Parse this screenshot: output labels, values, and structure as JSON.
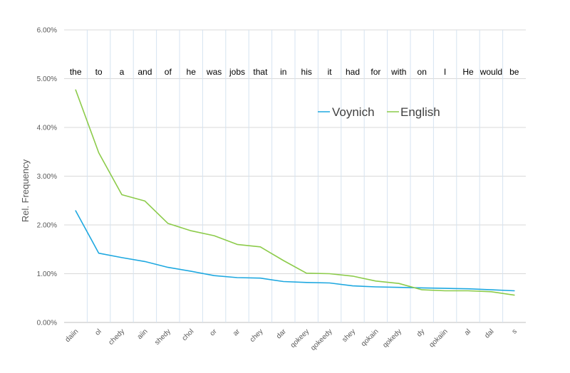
{
  "chart_data": {
    "type": "line",
    "title": "",
    "xlabel": "",
    "ylabel": "Rel. Frequency",
    "ylim": [
      0,
      0.06
    ],
    "yticks": [
      "0.00%",
      "1.00%",
      "2.00%",
      "3.00%",
      "4.00%",
      "5.00%",
      "6.00%"
    ],
    "grid": true,
    "legend_position": "top-right",
    "categories": [
      "daiin",
      "ol",
      "chedy",
      "aiin",
      "shedy",
      "chol",
      "or",
      "ar",
      "chey",
      "dar",
      "qokeey",
      "qokeedy",
      "shey",
      "qokain",
      "qokedy",
      "dy",
      "qokaiin",
      "al",
      "dal",
      "s"
    ],
    "top_labels": [
      "the",
      "to",
      "a",
      "and",
      "of",
      "he",
      "was",
      "jobs",
      "that",
      "in",
      "his",
      "it",
      "had",
      "for",
      "with",
      "on",
      "I",
      "He",
      "would",
      "be"
    ],
    "series": [
      {
        "name": "Voynich",
        "color": "#1EA8E0",
        "values": [
          0.0229,
          0.0142,
          0.0133,
          0.0125,
          0.0113,
          0.0105,
          0.0096,
          0.0092,
          0.0091,
          0.0084,
          0.0082,
          0.0081,
          0.0075,
          0.0073,
          0.0072,
          0.0071,
          0.007,
          0.0069,
          0.0067,
          0.0065
        ]
      },
      {
        "name": "English",
        "color": "#8CCB4A",
        "values": [
          0.0477,
          0.0348,
          0.0262,
          0.0249,
          0.0203,
          0.0188,
          0.0178,
          0.016,
          0.0155,
          0.0127,
          0.0101,
          0.01,
          0.0095,
          0.0085,
          0.008,
          0.0067,
          0.0065,
          0.0065,
          0.0063,
          0.0056
        ]
      }
    ]
  }
}
